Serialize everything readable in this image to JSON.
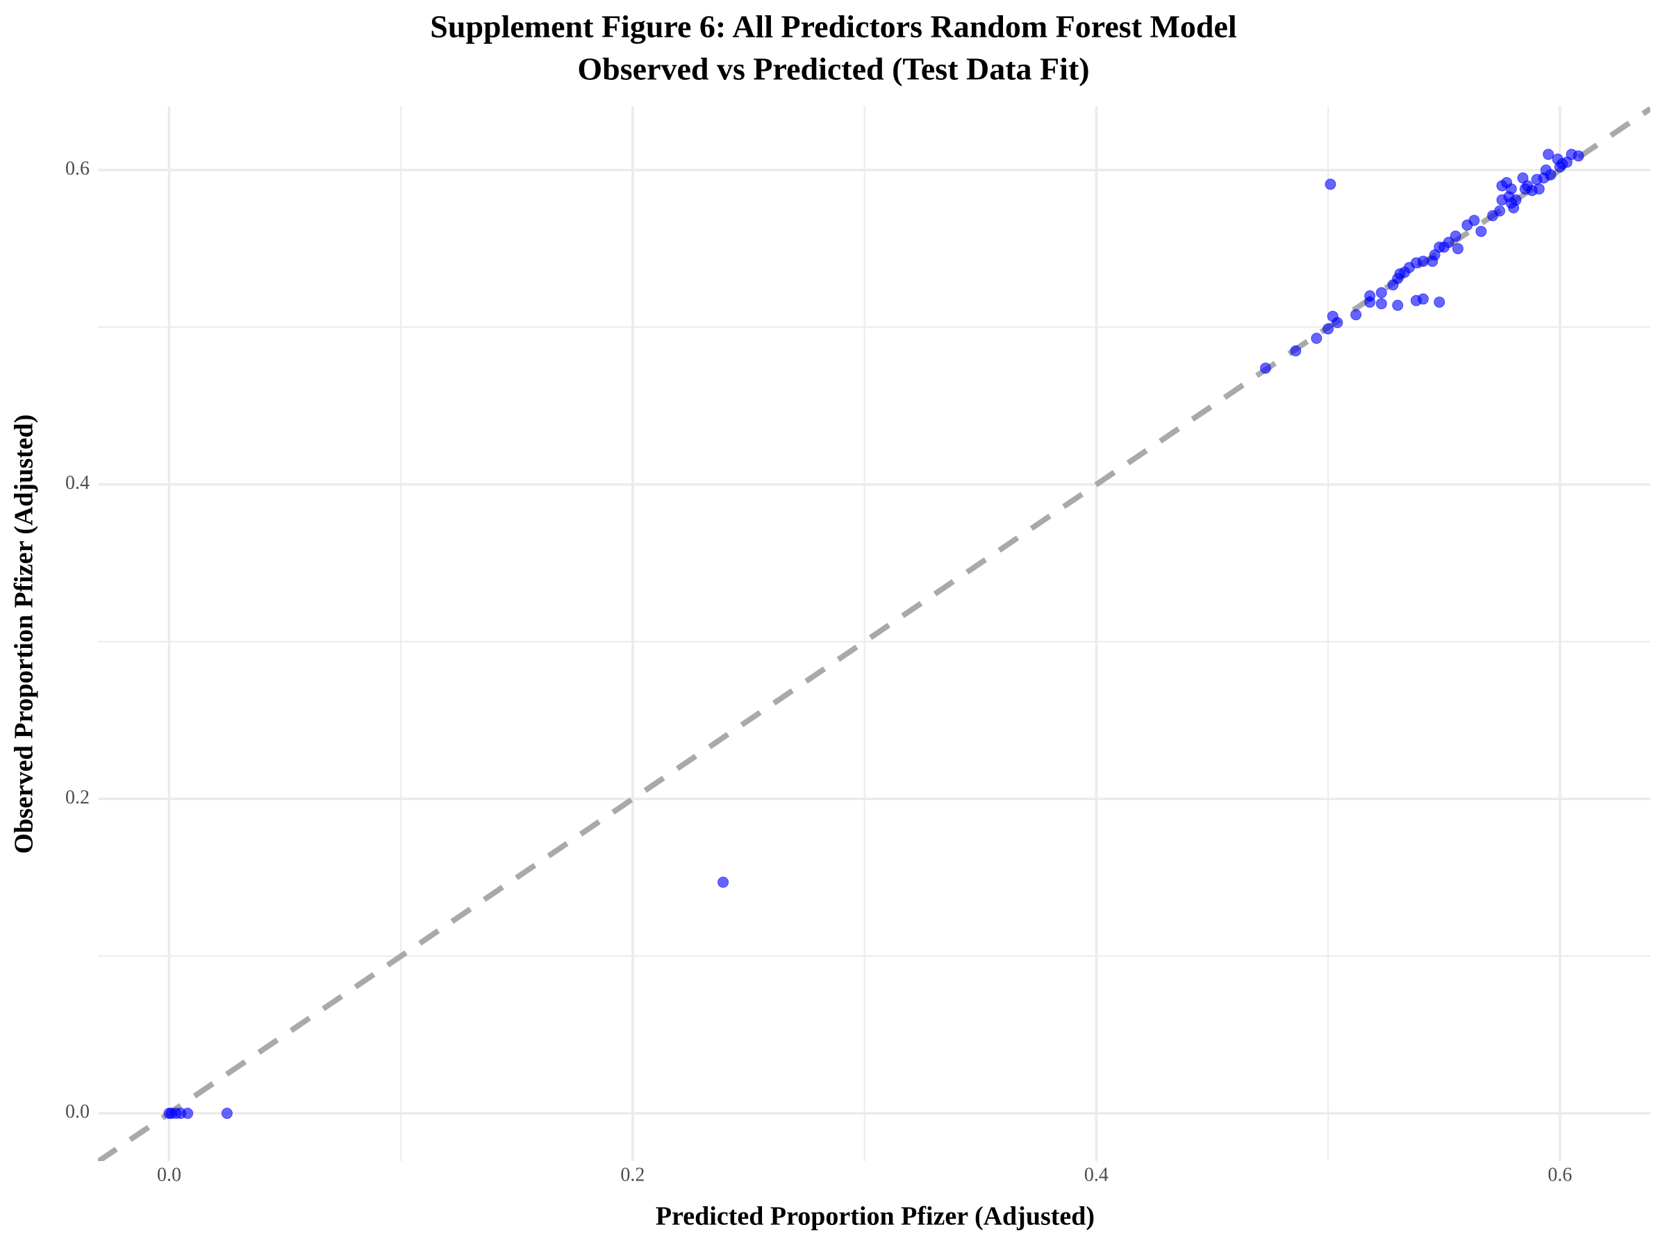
{
  "chart_data": {
    "type": "scatter",
    "title": [
      "Supplement Figure 6: All Predictors Random Forest Model",
      "Observed vs Predicted (Test Data Fit)"
    ],
    "x_label": "Predicted Proportion Pfizer (Adjusted)",
    "y_label": "Observed Proportion Pfizer (Adjusted)",
    "xlim": [
      -0.0307,
      0.639
    ],
    "ylim": [
      -0.0304,
      0.6406
    ],
    "xticks": [
      {
        "value": 0,
        "label": "0.0"
      },
      0.2,
      0.4,
      0.6
    ],
    "yticks": [
      {
        "value": 0,
        "label": "0.0"
      },
      0.2,
      0.4,
      0.6
    ],
    "x_minor_grid": [
      0.1,
      0.3,
      0.5
    ],
    "y_minor_grid": [
      0.1,
      0.3,
      0.5
    ],
    "grid": true,
    "reference_line": {
      "slope": 1,
      "intercept": 0,
      "color": "#a9a9a9",
      "dashed": true
    },
    "series": [
      {
        "color": "#0000ff",
        "opacity": 0.6,
        "x": [
          0,
          0.001,
          0.003,
          0.005,
          0.008,
          0.025,
          0.239,
          0.501,
          0.473,
          0.486,
          0.495,
          0.5,
          0.502,
          0.504,
          0.512,
          0.518,
          0.518,
          0.523,
          0.53,
          0.538,
          0.541,
          0.548,
          0.523,
          0.528,
          0.53,
          0.531,
          0.533,
          0.535,
          0.538,
          0.541,
          0.545,
          0.546,
          0.548,
          0.55,
          0.552,
          0.555,
          0.556,
          0.56,
          0.563,
          0.566,
          0.571,
          0.574,
          0.575,
          0.575,
          0.577,
          0.578,
          0.579,
          0.579,
          0.581,
          0.58,
          0.584,
          0.585,
          0.586,
          0.588,
          0.59,
          0.591,
          0.593,
          0.594,
          0.595,
          0.596,
          0.599,
          0.6,
          0.601,
          0.603,
          0.605,
          0.608
        ],
        "values": [
          0,
          0,
          0,
          0,
          0,
          0,
          0.147,
          0.591,
          0.474,
          0.485,
          0.493,
          0.499,
          0.507,
          0.503,
          0.508,
          0.516,
          0.52,
          0.515,
          0.514,
          0.517,
          0.518,
          0.516,
          0.522,
          0.527,
          0.531,
          0.534,
          0.535,
          0.538,
          0.541,
          0.542,
          0.542,
          0.546,
          0.551,
          0.551,
          0.554,
          0.558,
          0.55,
          0.565,
          0.568,
          0.561,
          0.571,
          0.574,
          0.581,
          0.59,
          0.592,
          0.583,
          0.588,
          0.579,
          0.581,
          0.576,
          0.595,
          0.588,
          0.59,
          0.587,
          0.594,
          0.588,
          0.595,
          0.6,
          0.61,
          0.597,
          0.607,
          0.602,
          0.604,
          0.605,
          0.61,
          0.609
        ]
      }
    ]
  }
}
